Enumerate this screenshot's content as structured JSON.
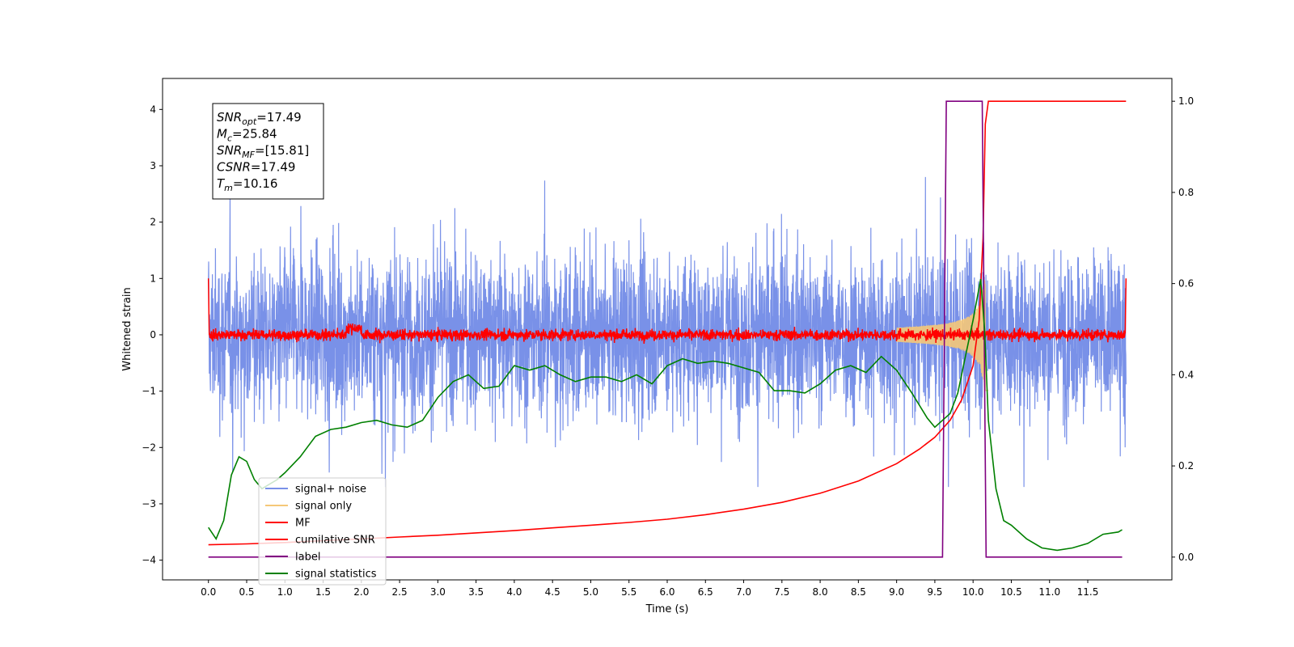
{
  "chart_data": {
    "type": "line",
    "xlabel": "Time (s)",
    "ylabel": "Whitened strain",
    "xlim": [
      -0.6,
      12.6
    ],
    "ylim": [
      -4.35,
      4.55
    ],
    "ylim_right": [
      -0.05,
      1.05
    ],
    "x_ticks": [
      0.0,
      0.5,
      1.0,
      1.5,
      2.0,
      2.5,
      3.0,
      3.5,
      4.0,
      4.5,
      5.0,
      5.5,
      6.0,
      6.5,
      7.0,
      7.5,
      8.0,
      8.5,
      9.0,
      9.5,
      10.0,
      10.5,
      11.0,
      11.5
    ],
    "x_tick_labels": [
      "0.0",
      "0.5",
      "1.0",
      "1.5",
      "2.0",
      "2.5",
      "3.0",
      "3.5",
      "4.0",
      "4.5",
      "5.0",
      "5.5",
      "6.0",
      "6.5",
      "7.0",
      "7.5",
      "8.0",
      "8.5",
      "9.0",
      "9.5",
      "10.0",
      "10.5",
      "11.0",
      "11.5"
    ],
    "y_ticks": [
      -4,
      -3,
      -2,
      -1,
      0,
      1,
      2,
      3,
      4
    ],
    "y_tick_labels": [
      "−4",
      "−3",
      "−2",
      "−1",
      "0",
      "1",
      "2",
      "3",
      "4"
    ],
    "y_right_ticks": [
      0.0,
      0.2,
      0.4,
      0.6,
      0.8,
      1.0
    ],
    "y_right_tick_labels": [
      "0.0",
      "0.2",
      "0.4",
      "0.6",
      "0.8",
      "1.0"
    ],
    "grid": false,
    "legend_placement": "lower-left",
    "annotation": {
      "lines": [
        {
          "main": "SNR",
          "sub": "opt",
          "rest": "=17.49"
        },
        {
          "main": "M",
          "sub": "c",
          "rest": "=25.84"
        },
        {
          "main": "SNR",
          "sub": "MF",
          "rest": "=[15.81]"
        },
        {
          "main": "CSNR",
          "sub": "",
          "rest": "=17.49"
        },
        {
          "main": "T",
          "sub": "m",
          "rest": "=10.16"
        }
      ]
    },
    "series": [
      {
        "name": "signal+ noise",
        "color": "#7991e8",
        "axis": "left",
        "kind": "noise",
        "x_range": [
          0.0,
          12.0
        ],
        "std": 0.72
      },
      {
        "name": "signal only",
        "color": "#f5c878",
        "axis": "left",
        "kind": "chirp",
        "peak_time": 10.16,
        "peak_amplitude": 1.0
      },
      {
        "name": "MF",
        "color": "#ff0000",
        "axis": "left",
        "kind": "noise",
        "x_range": [
          0.0,
          12.0
        ],
        "std": 0.05
      },
      {
        "name": "cumilative SNR",
        "color": "#ff0000",
        "axis": "right",
        "x": [
          0.0,
          0.5,
          1.0,
          1.5,
          2.0,
          2.5,
          3.0,
          3.5,
          4.0,
          4.5,
          5.0,
          5.5,
          6.0,
          6.5,
          7.0,
          7.5,
          8.0,
          8.5,
          9.0,
          9.3,
          9.5,
          9.7,
          9.85,
          10.0,
          10.08,
          10.13,
          10.16,
          10.2,
          12.0
        ],
        "y": [
          0.027,
          0.029,
          0.032,
          0.036,
          0.04,
          0.044,
          0.048,
          0.053,
          0.058,
          0.064,
          0.07,
          0.076,
          0.083,
          0.093,
          0.105,
          0.12,
          0.14,
          0.167,
          0.205,
          0.237,
          0.263,
          0.3,
          0.345,
          0.42,
          0.52,
          0.7,
          0.95,
          1.0,
          1.0
        ]
      },
      {
        "name": "label",
        "color": "#800080",
        "axis": "right",
        "x": [
          0.0,
          9.6,
          9.65,
          10.12,
          10.17,
          11.95
        ],
        "y": [
          0.0,
          0.0,
          1.0,
          1.0,
          0.0,
          0.0
        ]
      },
      {
        "name": "signal statistics",
        "color": "#008000",
        "axis": "right",
        "x": [
          0.0,
          0.1,
          0.2,
          0.3,
          0.4,
          0.5,
          0.6,
          0.7,
          0.8,
          0.9,
          1.0,
          1.2,
          1.4,
          1.6,
          1.8,
          2.0,
          2.2,
          2.4,
          2.6,
          2.8,
          3.0,
          3.2,
          3.4,
          3.6,
          3.8,
          4.0,
          4.2,
          4.4,
          4.6,
          4.8,
          5.0,
          5.2,
          5.4,
          5.6,
          5.8,
          6.0,
          6.2,
          6.4,
          6.6,
          6.8,
          7.0,
          7.2,
          7.4,
          7.6,
          7.8,
          8.0,
          8.2,
          8.4,
          8.6,
          8.8,
          9.0,
          9.2,
          9.4,
          9.5,
          9.6,
          9.7,
          9.8,
          9.9,
          10.0,
          10.1,
          10.15,
          10.2,
          10.3,
          10.4,
          10.5,
          10.7,
          10.9,
          11.1,
          11.3,
          11.5,
          11.7,
          11.9,
          11.95
        ],
        "y": [
          0.065,
          0.04,
          0.08,
          0.18,
          0.22,
          0.21,
          0.17,
          0.15,
          0.16,
          0.17,
          0.185,
          0.22,
          0.265,
          0.28,
          0.285,
          0.295,
          0.3,
          0.29,
          0.285,
          0.3,
          0.35,
          0.385,
          0.4,
          0.37,
          0.375,
          0.42,
          0.41,
          0.42,
          0.4,
          0.385,
          0.395,
          0.395,
          0.385,
          0.4,
          0.38,
          0.42,
          0.435,
          0.425,
          0.43,
          0.425,
          0.415,
          0.405,
          0.365,
          0.365,
          0.36,
          0.38,
          0.41,
          0.42,
          0.405,
          0.44,
          0.41,
          0.36,
          0.305,
          0.285,
          0.3,
          0.315,
          0.36,
          0.44,
          0.52,
          0.61,
          0.5,
          0.3,
          0.15,
          0.08,
          0.07,
          0.04,
          0.02,
          0.015,
          0.02,
          0.03,
          0.05,
          0.055,
          0.06
        ]
      }
    ]
  }
}
